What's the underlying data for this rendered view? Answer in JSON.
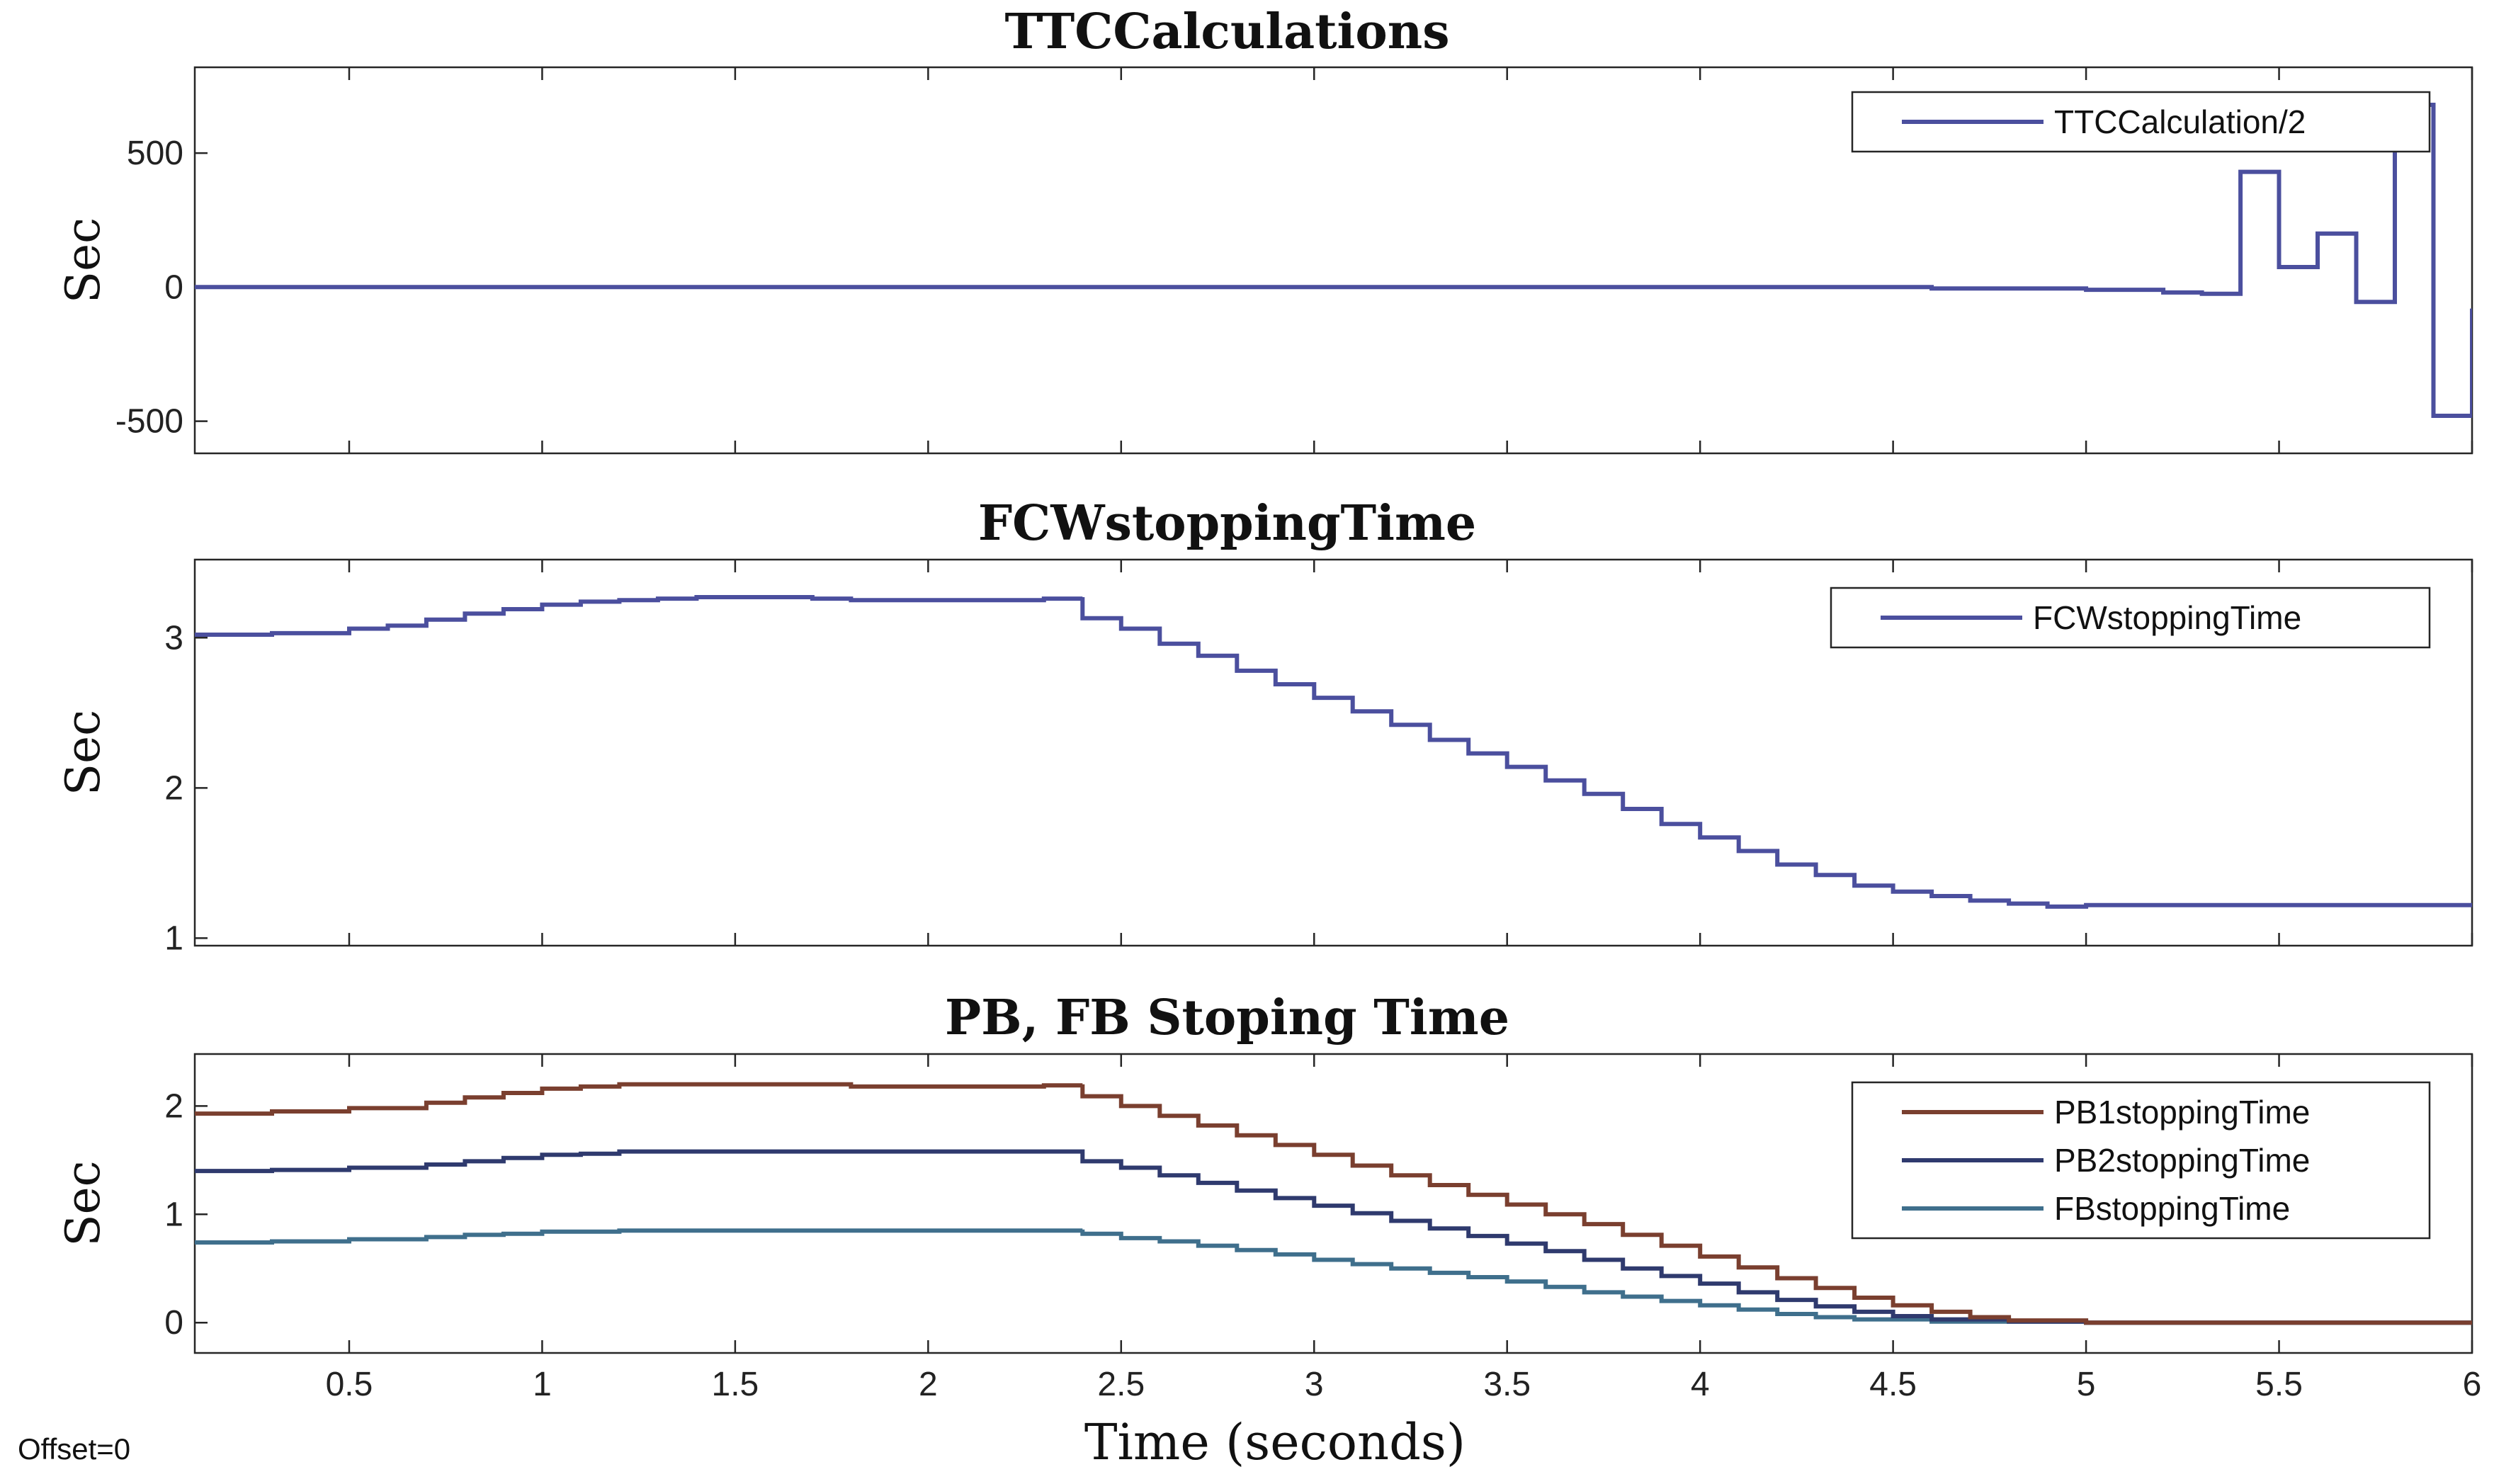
{
  "chart_data": [
    {
      "type": "line",
      "step": true,
      "title": "TTCCalculations",
      "ylabel": "Sec",
      "xlabel": "",
      "xlim": [
        0.1,
        6
      ],
      "ylim": [
        -620,
        820
      ],
      "xticks": [
        0.5,
        1,
        1.5,
        2,
        2.5,
        3,
        3.5,
        4,
        4.5,
        5,
        5.5,
        6
      ],
      "xtick_labels_shown": false,
      "yticks": [
        500,
        0,
        -500
      ],
      "ytick_labels": [
        "500",
        "0",
        "-500"
      ],
      "legend_position": "top-right",
      "series": [
        {
          "name": "TTCCalculation/2",
          "color": "#4b4f9e",
          "points": [
            [
              0.1,
              0
            ],
            [
              4.6,
              0
            ],
            [
              4.6,
              -5
            ],
            [
              5.0,
              -5
            ],
            [
              5.0,
              -10
            ],
            [
              5.2,
              -10
            ],
            [
              5.2,
              -20
            ],
            [
              5.3,
              -20
            ],
            [
              5.3,
              -25
            ],
            [
              5.4,
              -25
            ],
            [
              5.4,
              430
            ],
            [
              5.5,
              430
            ],
            [
              5.5,
              75
            ],
            [
              5.6,
              75
            ],
            [
              5.6,
              200
            ],
            [
              5.7,
              200
            ],
            [
              5.7,
              -55
            ],
            [
              5.8,
              -55
            ],
            [
              5.8,
              680
            ],
            [
              5.9,
              680
            ],
            [
              5.9,
              -480
            ],
            [
              6.0,
              -480
            ],
            [
              6.0,
              -80
            ]
          ]
        }
      ]
    },
    {
      "type": "line",
      "step": true,
      "title": "FCWstoppingTime",
      "ylabel": "Sec",
      "xlabel": "",
      "xlim": [
        0.1,
        6
      ],
      "ylim": [
        0.95,
        3.52
      ],
      "xticks": [
        0.5,
        1,
        1.5,
        2,
        2.5,
        3,
        3.5,
        4,
        4.5,
        5,
        5.5,
        6
      ],
      "xtick_labels_shown": false,
      "yticks": [
        3,
        2,
        1
      ],
      "ytick_labels": [
        "3",
        "2",
        "1"
      ],
      "legend_position": "top-right",
      "series": [
        {
          "name": "FCWstoppingTime",
          "color": "#4b4f9e",
          "points": [
            [
              0.1,
              3.02
            ],
            [
              0.3,
              3.03
            ],
            [
              0.5,
              3.06
            ],
            [
              0.6,
              3.08
            ],
            [
              0.7,
              3.12
            ],
            [
              0.8,
              3.16
            ],
            [
              0.9,
              3.19
            ],
            [
              1.0,
              3.22
            ],
            [
              1.1,
              3.24
            ],
            [
              1.2,
              3.25
            ],
            [
              1.3,
              3.26
            ],
            [
              1.4,
              3.27
            ],
            [
              1.6,
              3.27
            ],
            [
              1.7,
              3.26
            ],
            [
              1.8,
              3.25
            ],
            [
              2.1,
              3.25
            ],
            [
              2.3,
              3.26
            ],
            [
              2.4,
              3.27
            ],
            [
              2.4,
              3.13
            ],
            [
              2.5,
              3.06
            ],
            [
              2.6,
              2.96
            ],
            [
              2.7,
              2.88
            ],
            [
              2.8,
              2.78
            ],
            [
              2.9,
              2.69
            ],
            [
              3.0,
              2.6
            ],
            [
              3.1,
              2.51
            ],
            [
              3.2,
              2.42
            ],
            [
              3.3,
              2.32
            ],
            [
              3.4,
              2.23
            ],
            [
              3.5,
              2.14
            ],
            [
              3.6,
              2.05
            ],
            [
              3.7,
              1.96
            ],
            [
              3.8,
              1.86
            ],
            [
              3.9,
              1.76
            ],
            [
              4.0,
              1.67
            ],
            [
              4.1,
              1.58
            ],
            [
              4.2,
              1.49
            ],
            [
              4.3,
              1.42
            ],
            [
              4.4,
              1.35
            ],
            [
              4.5,
              1.31
            ],
            [
              4.6,
              1.28
            ],
            [
              4.7,
              1.25
            ],
            [
              4.8,
              1.23
            ],
            [
              4.9,
              1.21
            ],
            [
              5.0,
              1.22
            ],
            [
              6.0,
              1.22
            ]
          ]
        }
      ]
    },
    {
      "type": "line",
      "step": true,
      "title": "PB, FB Stoping Time",
      "ylabel": "Sec",
      "xlabel": "Time (seconds)",
      "xlim": [
        0.1,
        6
      ],
      "ylim": [
        -0.28,
        2.48
      ],
      "xticks": [
        0.5,
        1,
        1.5,
        2,
        2.5,
        3,
        3.5,
        4,
        4.5,
        5,
        5.5,
        6
      ],
      "xtick_labels": [
        "0.5",
        "1",
        "1.5",
        "2",
        "2.5",
        "3",
        "3.5",
        "4",
        "4.5",
        "5",
        "5.5",
        "6"
      ],
      "xtick_labels_shown": true,
      "yticks": [
        2,
        1,
        0
      ],
      "ytick_labels": [
        "2",
        "1",
        "0"
      ],
      "legend_position": "top-right",
      "series": [
        {
          "name": "PB1stoppingTime",
          "color": "#7a3f2f",
          "points": [
            [
              0.1,
              1.93
            ],
            [
              0.3,
              1.95
            ],
            [
              0.5,
              1.98
            ],
            [
              0.7,
              2.03
            ],
            [
              0.8,
              2.08
            ],
            [
              0.9,
              2.12
            ],
            [
              1.0,
              2.16
            ],
            [
              1.1,
              2.18
            ],
            [
              1.2,
              2.2
            ],
            [
              1.6,
              2.2
            ],
            [
              1.8,
              2.18
            ],
            [
              2.2,
              2.18
            ],
            [
              2.3,
              2.19
            ],
            [
              2.4,
              2.2
            ],
            [
              2.4,
              2.09
            ],
            [
              2.5,
              2.0
            ],
            [
              2.6,
              1.91
            ],
            [
              2.7,
              1.82
            ],
            [
              2.8,
              1.73
            ],
            [
              2.9,
              1.64
            ],
            [
              3.0,
              1.55
            ],
            [
              3.1,
              1.45
            ],
            [
              3.2,
              1.36
            ],
            [
              3.3,
              1.27
            ],
            [
              3.4,
              1.18
            ],
            [
              3.5,
              1.09
            ],
            [
              3.6,
              1.0
            ],
            [
              3.7,
              0.91
            ],
            [
              3.8,
              0.81
            ],
            [
              3.9,
              0.71
            ],
            [
              4.0,
              0.61
            ],
            [
              4.1,
              0.51
            ],
            [
              4.2,
              0.41
            ],
            [
              4.3,
              0.32
            ],
            [
              4.4,
              0.23
            ],
            [
              4.5,
              0.16
            ],
            [
              4.6,
              0.1
            ],
            [
              4.7,
              0.05
            ],
            [
              4.8,
              0.02
            ],
            [
              5.0,
              0.0
            ],
            [
              6.0,
              0.0
            ]
          ]
        },
        {
          "name": "PB2stoppingTime",
          "color": "#2f3a6e",
          "points": [
            [
              0.1,
              1.4
            ],
            [
              0.3,
              1.41
            ],
            [
              0.5,
              1.43
            ],
            [
              0.7,
              1.46
            ],
            [
              0.8,
              1.49
            ],
            [
              0.9,
              1.52
            ],
            [
              1.0,
              1.55
            ],
            [
              1.1,
              1.56
            ],
            [
              1.2,
              1.58
            ],
            [
              1.6,
              1.58
            ],
            [
              2.2,
              1.58
            ],
            [
              2.4,
              1.58
            ],
            [
              2.4,
              1.49
            ],
            [
              2.5,
              1.43
            ],
            [
              2.6,
              1.36
            ],
            [
              2.7,
              1.29
            ],
            [
              2.8,
              1.22
            ],
            [
              2.9,
              1.15
            ],
            [
              3.0,
              1.08
            ],
            [
              3.1,
              1.01
            ],
            [
              3.2,
              0.94
            ],
            [
              3.3,
              0.87
            ],
            [
              3.4,
              0.8
            ],
            [
              3.5,
              0.73
            ],
            [
              3.6,
              0.66
            ],
            [
              3.7,
              0.58
            ],
            [
              3.8,
              0.5
            ],
            [
              3.9,
              0.43
            ],
            [
              4.0,
              0.36
            ],
            [
              4.1,
              0.28
            ],
            [
              4.2,
              0.21
            ],
            [
              4.3,
              0.15
            ],
            [
              4.4,
              0.1
            ],
            [
              4.5,
              0.06
            ],
            [
              4.6,
              0.03
            ],
            [
              4.8,
              0.01
            ],
            [
              5.0,
              0.0
            ],
            [
              6.0,
              0.0
            ]
          ]
        },
        {
          "name": "FBstoppingTime",
          "color": "#3f6f8c",
          "points": [
            [
              0.1,
              0.74
            ],
            [
              0.3,
              0.75
            ],
            [
              0.5,
              0.77
            ],
            [
              0.7,
              0.79
            ],
            [
              0.8,
              0.81
            ],
            [
              0.9,
              0.82
            ],
            [
              1.0,
              0.84
            ],
            [
              1.2,
              0.85
            ],
            [
              1.6,
              0.85
            ],
            [
              2.2,
              0.85
            ],
            [
              2.4,
              0.86
            ],
            [
              2.4,
              0.82
            ],
            [
              2.5,
              0.78
            ],
            [
              2.6,
              0.75
            ],
            [
              2.7,
              0.71
            ],
            [
              2.8,
              0.67
            ],
            [
              2.9,
              0.63
            ],
            [
              3.0,
              0.58
            ],
            [
              3.1,
              0.54
            ],
            [
              3.2,
              0.5
            ],
            [
              3.3,
              0.46
            ],
            [
              3.4,
              0.42
            ],
            [
              3.5,
              0.38
            ],
            [
              3.6,
              0.33
            ],
            [
              3.7,
              0.28
            ],
            [
              3.8,
              0.24
            ],
            [
              3.9,
              0.2
            ],
            [
              4.0,
              0.16
            ],
            [
              4.1,
              0.12
            ],
            [
              4.2,
              0.08
            ],
            [
              4.3,
              0.05
            ],
            [
              4.4,
              0.03
            ],
            [
              4.6,
              0.01
            ],
            [
              5.0,
              0.0
            ],
            [
              6.0,
              0.0
            ]
          ]
        }
      ]
    }
  ],
  "footer": {
    "offset_text": "Offset=0"
  }
}
